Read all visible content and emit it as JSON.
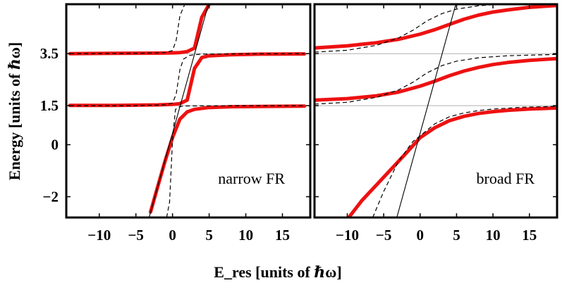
{
  "chart_data": {
    "type": "line",
    "xlabel": "E_res [units of ℏω]",
    "ylabel": "Energy [units of ℏω]",
    "ylim": [
      -2.8,
      5.4
    ],
    "yticks": [
      {
        "v": 3.5,
        "label": "3.5"
      },
      {
        "v": 1.5,
        "label": "1.5"
      },
      {
        "v": 0,
        "label": "0"
      },
      {
        "v": -2,
        "label": "−2"
      }
    ],
    "xticks": [
      {
        "v": -10,
        "label": "−10"
      },
      {
        "v": -5,
        "label": "−5"
      },
      {
        "v": 0,
        "label": "0"
      },
      {
        "v": 5,
        "label": "5"
      },
      {
        "v": 10,
        "label": "10"
      },
      {
        "v": 15,
        "label": "15"
      }
    ],
    "panels": [
      {
        "annotation": "narrow FR",
        "xlim": [
          -14.5,
          18.8
        ],
        "coupling": 0.25,
        "dashed_offset": 2,
        "dashed_coupling": 0.12,
        "red_curves": [
          {
            "lower": -4,
            "upper": 1.5,
            "x": [
              -3,
              -2,
              -1,
              0,
              1,
              2,
              3,
              5,
              8,
              12,
              18
            ],
            "y": [
              -2.59,
              -1.59,
              -0.61,
              0.28,
              0.98,
              1.26,
              1.36,
              1.43,
              1.46,
              1.47,
              1.48
            ]
          },
          {
            "lower": 1.5,
            "upper": 3.5,
            "x": [
              -14,
              -8,
              -2,
              0,
              1,
              2,
              3,
              4,
              5,
              8,
              12,
              18
            ],
            "y": [
              1.51,
              1.51,
              1.53,
              1.55,
              1.58,
              1.71,
              2.93,
              3.35,
              3.42,
              3.46,
              3.48,
              3.49
            ]
          },
          {
            "lower": 3.5,
            "upper": 5.5,
            "x": [
              -14,
              -8,
              -2,
              0,
              1,
              2,
              3,
              4,
              5
            ],
            "y": [
              3.5,
              3.51,
              3.52,
              3.53,
              3.54,
              3.58,
              3.71,
              4.9,
              5.4
            ]
          }
        ],
        "dashed_curves": [
          {
            "x": [
              -0.8,
              -0.4,
              0,
              0.4,
              0.8,
              1.5,
              3,
              8,
              18
            ],
            "y": [
              -2.8,
              -2.2,
              0.21,
              1.35,
              1.45,
              1.49,
              1.49,
              1.5,
              1.5
            ]
          },
          {
            "x": [
              -14,
              -5,
              -1,
              0,
              0.5,
              1,
              1.5,
              2.3,
              3,
              4,
              8,
              18
            ],
            "y": [
              1.5,
              1.5,
              1.53,
              1.6,
              1.95,
              2.88,
              3.29,
              3.43,
              3.46,
              3.48,
              3.49,
              3.5
            ]
          },
          {
            "x": [
              -14,
              -5,
              -1,
              0,
              0.5,
              1,
              1.5,
              1.7
            ],
            "y": [
              3.5,
              3.51,
              3.54,
              3.62,
              4.02,
              4.95,
              5.29,
              5.4
            ]
          }
        ],
        "bare_line": {
          "x": [
            -3.2,
            4.9
          ],
          "y": [
            -2.8,
            5.4
          ]
        },
        "thresholds": [
          1.5,
          3.5
        ]
      },
      {
        "annotation": "broad FR",
        "xlim": [
          -14.5,
          18.8
        ],
        "coupling": 4.5,
        "dashed_offset": 2,
        "dashed_coupling": 2.6,
        "red_curves": [
          {
            "lower": -4,
            "upper": 1.5,
            "x": [
              -9.8,
              -8,
              -6,
              -4,
              -2,
              0,
              2,
              4,
              6,
              8,
              10,
              12,
              15,
              18.8
            ],
            "y": [
              -2.8,
              -2.15,
              -1.55,
              -0.95,
              -0.35,
              0.27,
              0.65,
              0.92,
              1.09,
              1.2,
              1.27,
              1.32,
              1.37,
              1.41
            ]
          },
          {
            "lower": 1.5,
            "upper": 3.5,
            "x": [
              -14.5,
              -10,
              -6,
              -3,
              0,
              2,
              4,
              6,
              8,
              10,
              12,
              15,
              18.8
            ],
            "y": [
              1.71,
              1.77,
              1.88,
              2.02,
              2.25,
              2.44,
              2.65,
              2.83,
              2.97,
              3.08,
              3.16,
              3.24,
              3.31
            ]
          },
          {
            "lower": 3.5,
            "upper": 5.5,
            "x": [
              -14.5,
              -10,
              -6,
              -3,
              0,
              2,
              4,
              6,
              8,
              10,
              12,
              15,
              18.8
            ],
            "y": [
              3.72,
              3.8,
              3.92,
              4.05,
              4.25,
              4.42,
              4.62,
              4.82,
              4.98,
              5.1,
              5.18,
              5.28,
              5.35
            ]
          }
        ],
        "dashed_curves": [
          {
            "x": [
              -6.5,
              -5,
              -3,
              -1,
              0,
              2,
              4,
              6,
              8,
              10,
              14,
              18.8
            ],
            "y": [
              -2.8,
              -1.8,
              -0.65,
              0.12,
              0.34,
              0.8,
              1.07,
              1.22,
              1.31,
              1.37,
              1.44,
              1.47
            ]
          },
          {
            "x": [
              -14.5,
              -10,
              -6,
              -3,
              -1,
              1,
              3,
              5,
              8,
              12,
              18.8
            ],
            "y": [
              1.56,
              1.63,
              1.82,
              2.1,
              2.4,
              2.77,
              3.04,
              3.21,
              3.34,
              3.42,
              3.47
            ]
          },
          {
            "x": [
              -14.5,
              -10,
              -6,
              -3,
              -1,
              1,
              3,
              5,
              8,
              12,
              18.8
            ],
            "y": [
              3.56,
              3.63,
              3.82,
              4.1,
              4.4,
              4.77,
              5.04,
              5.21,
              5.34,
              5.42,
              5.47
            ]
          }
        ],
        "bare_line": {
          "x": [
            -3.2,
            4.9
          ],
          "y": [
            -2.8,
            5.4
          ]
        },
        "thresholds": [
          1.5,
          3.5
        ]
      }
    ]
  }
}
